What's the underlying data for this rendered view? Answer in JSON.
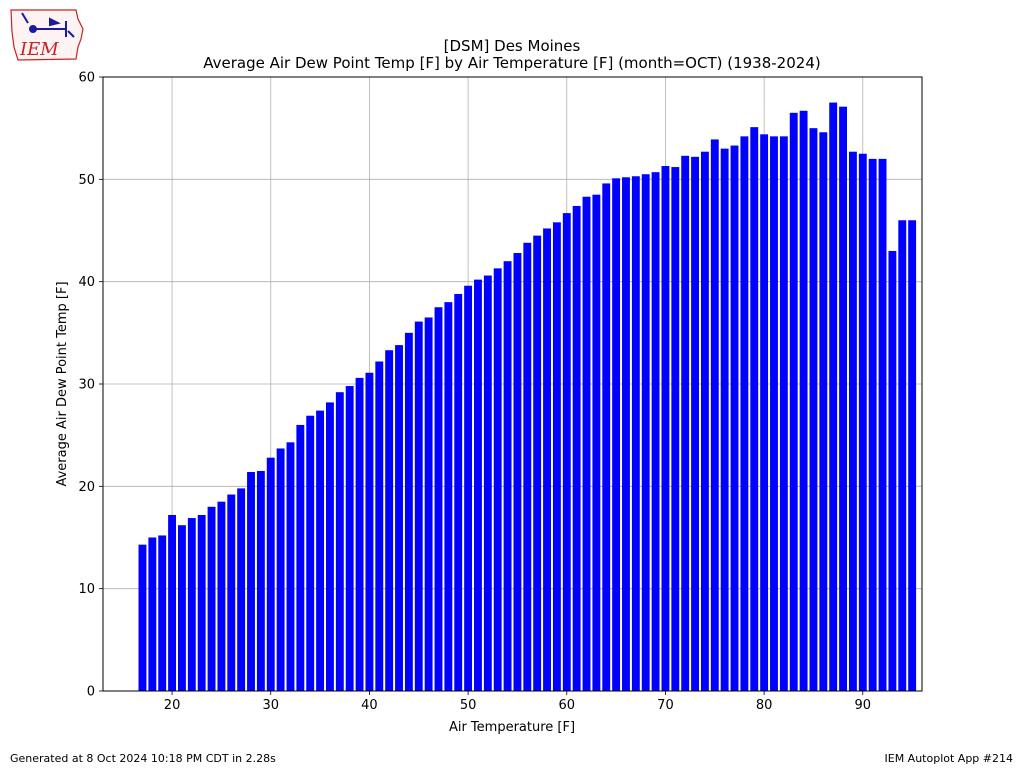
{
  "header": {
    "logo_text": "IEM",
    "title_line1": "[DSM] Des Moines",
    "title_line2": "Average Air Dew Point Temp [F] by Air Temperature [F] (month=OCT) (1938-2024)"
  },
  "footer": {
    "generated": "Generated at 8 Oct 2024 10:18 PM CDT in 2.28s",
    "app": "IEM Autoplot App #214"
  },
  "colors": {
    "bar": "#0000ff",
    "grid": "#b0b0b0",
    "logo_red": "#cc2222",
    "logo_blue": "#1a1aa6"
  },
  "chart_data": {
    "type": "bar",
    "title": "Average Air Dew Point Temp [F] by Air Temperature [F] (month=OCT) (1938-2024)",
    "xlabel": "Air Temperature [F]",
    "ylabel": "Average Air Dew Point Temp [F]",
    "xlim": [
      13,
      96
    ],
    "ylim": [
      0,
      60
    ],
    "xticks": [
      20,
      30,
      40,
      50,
      60,
      70,
      80,
      90
    ],
    "yticks": [
      0,
      10,
      20,
      30,
      40,
      50,
      60
    ],
    "grid": true,
    "x": [
      17,
      18,
      19,
      20,
      21,
      22,
      23,
      24,
      25,
      26,
      27,
      28,
      29,
      30,
      31,
      32,
      33,
      34,
      35,
      36,
      37,
      38,
      39,
      40,
      41,
      42,
      43,
      44,
      45,
      46,
      47,
      48,
      49,
      50,
      51,
      52,
      53,
      54,
      55,
      56,
      57,
      58,
      59,
      60,
      61,
      62,
      63,
      64,
      65,
      66,
      67,
      68,
      69,
      70,
      71,
      72,
      73,
      74,
      75,
      76,
      77,
      78,
      79,
      80,
      81,
      82,
      83,
      84,
      85,
      86,
      87,
      88,
      89,
      90,
      91,
      92,
      93,
      94,
      95
    ],
    "values": [
      14.3,
      15.0,
      15.2,
      17.2,
      16.2,
      16.9,
      17.2,
      18.0,
      18.5,
      19.2,
      19.8,
      21.4,
      21.5,
      22.8,
      23.7,
      24.3,
      26.0,
      26.9,
      27.4,
      28.2,
      29.2,
      29.8,
      30.6,
      31.1,
      32.2,
      33.3,
      33.8,
      35.0,
      36.1,
      36.5,
      37.5,
      38.0,
      38.8,
      39.6,
      40.2,
      40.6,
      41.3,
      42.0,
      42.8,
      43.8,
      44.5,
      45.2,
      45.8,
      46.7,
      47.4,
      48.3,
      48.5,
      49.6,
      50.1,
      50.2,
      50.3,
      50.5,
      50.7,
      51.3,
      51.2,
      52.3,
      52.2,
      52.7,
      53.9,
      53.0,
      53.3,
      54.2,
      55.1,
      54.4,
      54.2,
      54.2,
      56.5,
      56.7,
      55.0,
      54.6,
      57.5,
      57.1,
      52.7,
      52.5,
      52.0,
      52.0,
      43.0,
      46.0,
      46.0
    ]
  }
}
